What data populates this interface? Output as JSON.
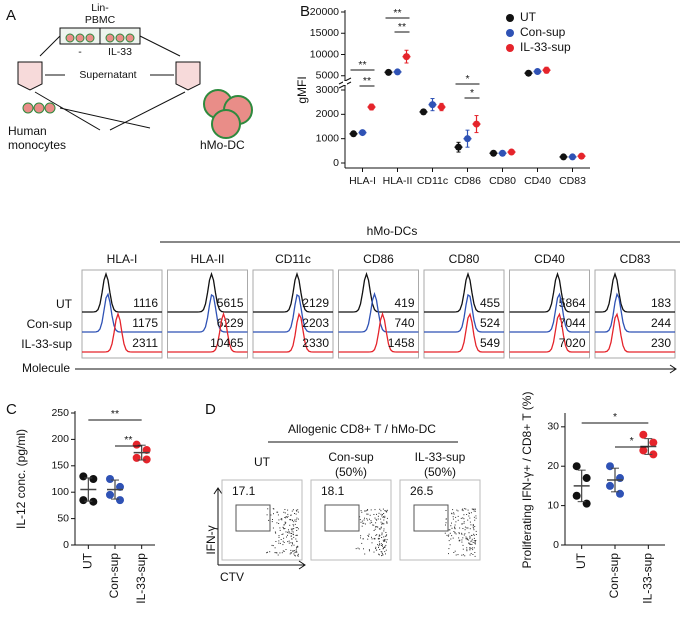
{
  "panel_labels": [
    "A",
    "B",
    "C",
    "D"
  ],
  "schematic": {
    "source_line1": "Lin-",
    "source_line2": "PBMC",
    "left_tube": "-",
    "right_tube": "IL-33",
    "supernatant": "Supernatant",
    "cells_line1": "Human",
    "cells_line2": "monocytes",
    "product": "hMo-DC"
  },
  "chart_data": [
    {
      "type": "dot",
      "ylabel": "gMFI",
      "categories": [
        "HLA-I",
        "HLA-II",
        "CD11c",
        "CD86",
        "CD80",
        "CD40",
        "CD83"
      ],
      "series": [
        {
          "name": "UT",
          "color": "#111111",
          "values": [
            1200,
            5800,
            2100,
            650,
            400,
            5600,
            250
          ],
          "errors": [
            80,
            500,
            100,
            200,
            50,
            300,
            30
          ]
        },
        {
          "name": "Con-sup",
          "color": "#2f52b5",
          "values": [
            1250,
            5900,
            2400,
            1000,
            400,
            6000,
            250
          ],
          "errors": [
            80,
            500,
            250,
            350,
            60,
            400,
            30
          ]
        },
        {
          "name": "IL-33-sup",
          "color": "#e5242b",
          "values": [
            2300,
            9500,
            2300,
            1600,
            450,
            6300,
            280
          ],
          "errors": [
            120,
            1500,
            150,
            350,
            80,
            700,
            40
          ]
        }
      ],
      "ylim": [
        0,
        20000
      ],
      "ybreak": [
        3000,
        4000
      ],
      "yticks": [
        0,
        1000,
        2000,
        3000,
        5000,
        10000,
        15000,
        20000
      ],
      "annotations": [
        "**",
        "**",
        "**",
        "**",
        "*",
        "*"
      ],
      "legend": "top-right"
    },
    {
      "type": "dot",
      "ylabel": "IL-12 conc. (pg/ml)",
      "categories": [
        "UT",
        "Con-sup",
        "IL-33-sup"
      ],
      "colors": [
        "#111111",
        "#2f52b5",
        "#e5242b"
      ],
      "values": [
        105,
        105,
        175
      ],
      "errors": [
        22,
        18,
        14
      ],
      "points": [
        [
          130,
          125,
          85,
          82
        ],
        [
          125,
          110,
          95,
          85
        ],
        [
          190,
          180,
          165,
          162
        ]
      ],
      "ylim": [
        0,
        250
      ],
      "yticks": [
        0,
        50,
        100,
        150,
        200,
        250
      ],
      "annotations": [
        "**",
        "**"
      ]
    },
    {
      "type": "dot",
      "ylabel": "Proliferating IFN-γ+ / CD8+ T (%)",
      "categories": [
        "UT",
        "Con-sup",
        "IL-33-sup"
      ],
      "colors": [
        "#111111",
        "#2f52b5",
        "#e5242b"
      ],
      "values": [
        15,
        16.5,
        25
      ],
      "errors": [
        4,
        3,
        2
      ],
      "points": [
        [
          20,
          17,
          12.5,
          10.5
        ],
        [
          20,
          17,
          15,
          13
        ],
        [
          28,
          26,
          24,
          23
        ]
      ],
      "ylim": [
        0,
        33
      ],
      "yticks": [
        0,
        10,
        20,
        30
      ],
      "annotations": [
        "*",
        "*"
      ]
    }
  ],
  "histograms": {
    "title": "hMo-DCs",
    "markers": [
      "HLA-I",
      "HLA-II",
      "CD11c",
      "CD86",
      "CD80",
      "CD40",
      "CD83"
    ],
    "rows": [
      "UT",
      "Con-sup",
      "IL-33-sup"
    ],
    "colors": [
      "#111111",
      "#2f52b5",
      "#e5242b"
    ],
    "values": [
      [
        1116,
        1175,
        2311
      ],
      [
        5615,
        6229,
        10465
      ],
      [
        2129,
        2203,
        2330
      ],
      [
        419,
        740,
        1458
      ],
      [
        455,
        524,
        549
      ],
      [
        5864,
        7044,
        7020
      ],
      [
        183,
        244,
        230
      ]
    ],
    "xlabel": "Molecule"
  },
  "flow": {
    "title": "Allogenic CD8+ T / hMo-DC",
    "columns": [
      {
        "name": "UT"
      },
      {
        "name": "Con-sup",
        "note": "(50%)"
      },
      {
        "name": "IL-33-sup",
        "note": "(50%)"
      }
    ],
    "gates": [
      17.1,
      18.1,
      26.5
    ],
    "ylabel": "IFN-γ",
    "xlabel": "CTV"
  }
}
